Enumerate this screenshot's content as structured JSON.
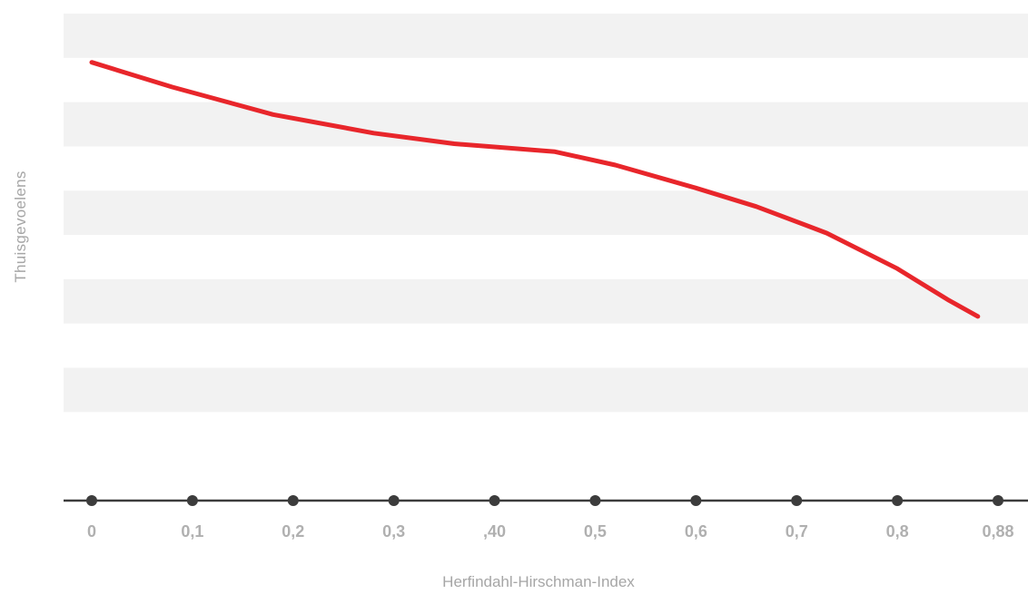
{
  "chart_data": {
    "type": "line",
    "title": "",
    "xlabel": "Herfindahl-Hirschman-Index",
    "ylabel": "Thuisgevoelens",
    "x_tick_labels": [
      "0",
      "0,1",
      "0,2",
      "0,3",
      ",40",
      "0,5",
      "0,6",
      "0,7",
      "0,8",
      "0,88"
    ],
    "y_ticks_shown": false,
    "grid": "horizontal-bands",
    "series": [
      {
        "color": "#e8262b",
        "x": [
          0,
          0.08,
          0.18,
          0.28,
          0.36,
          0.46,
          0.52,
          0.6,
          0.66,
          0.73,
          0.8,
          0.85,
          0.88
        ],
        "y": [
          4.45,
          4.17,
          3.86,
          3.65,
          3.53,
          3.44,
          3.29,
          3.03,
          2.82,
          2.52,
          2.12,
          1.77,
          1.58
        ]
      }
    ],
    "xlim": [
      -0.0278,
      0.93
    ],
    "ylim": [
      -0.5,
      5
    ],
    "colors": {
      "band": "#f2f2f2",
      "axis": "#3c3c3c",
      "line": "#e8262b",
      "tick_label": "#b0b0b0",
      "axis_label": "#a6a6a6"
    }
  }
}
